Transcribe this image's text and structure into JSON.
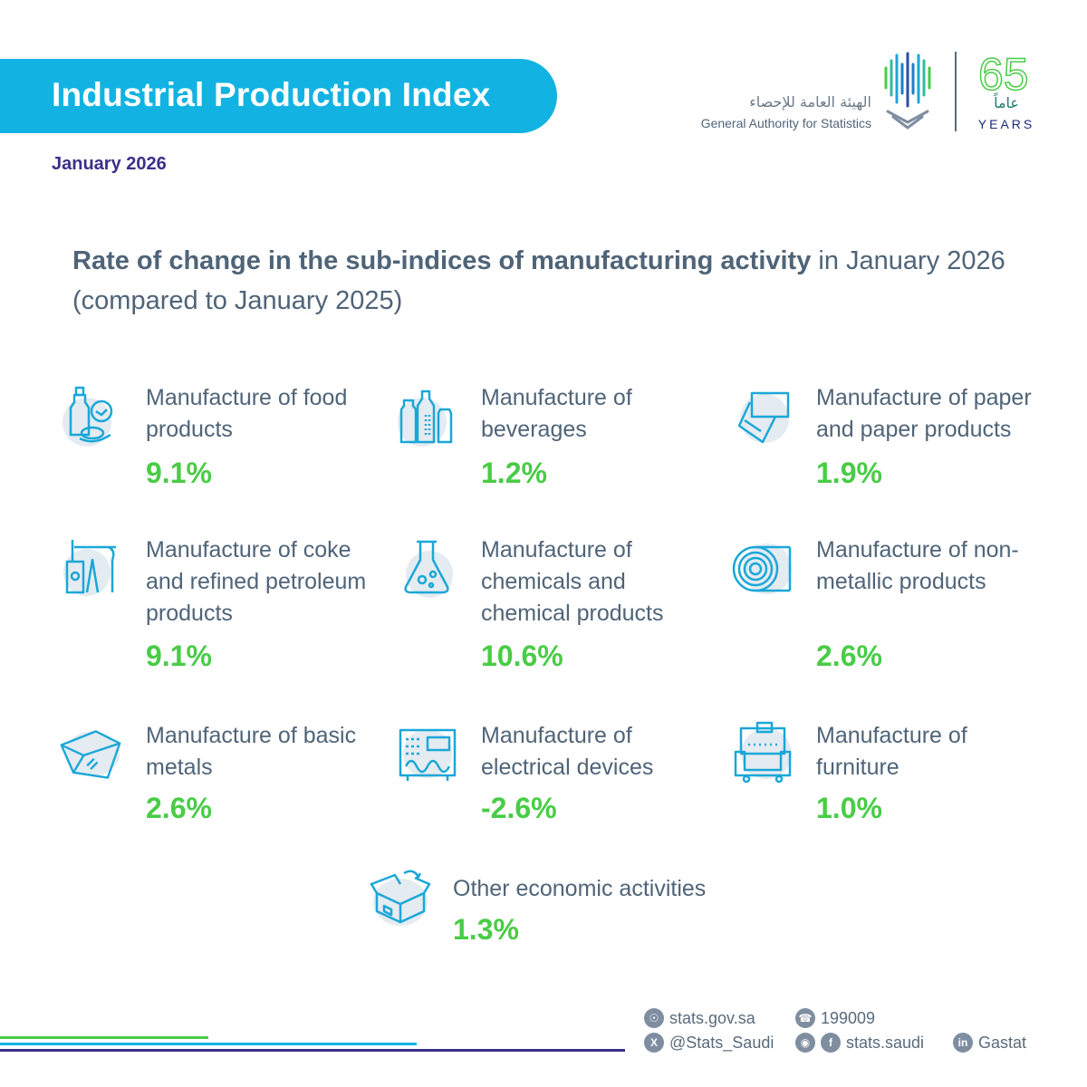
{
  "header": {
    "title": "Industrial Production Index",
    "date": "January 2026"
  },
  "logo": {
    "arabic_name": "الهيئة العامة للإحصاء",
    "english_name": "General Authority for Statistics",
    "years_number": "65",
    "years_arabic": "عاماً",
    "years_english": "YEARS"
  },
  "subtitle": {
    "bold": "Rate of change in the sub-indices of manufacturing activity",
    "rest_line1": " in January 2026",
    "line2": "(compared to January 2025)"
  },
  "items": [
    {
      "icon": "food-products-icon",
      "label": "Manufacture of food products",
      "value": "9.1%"
    },
    {
      "icon": "beverages-icon",
      "label": "Manufacture of beverages",
      "value": "1.2%"
    },
    {
      "icon": "paper-products-icon",
      "label": "Manufacture of paper and paper products",
      "value": "1.9%"
    },
    {
      "icon": "petroleum-icon",
      "label": "Manufacture of coke and refined petroleum products",
      "value": "9.1%"
    },
    {
      "icon": "chemicals-flask-icon",
      "label": "Manufacture of chemicals and chemical products",
      "value": "10.6%"
    },
    {
      "icon": "non-metallic-roll-icon",
      "label": "Manufacture of non-metallic products",
      "value": "2.6%"
    },
    {
      "icon": "basic-metals-icon",
      "label": "Manufacture of basic metals",
      "value": "2.6%"
    },
    {
      "icon": "electrical-devices-icon",
      "label": "Manufacture of electrical devices",
      "value": "-2.6%"
    },
    {
      "icon": "furniture-icon",
      "label": "Manufacture of furniture",
      "value": "1.0%"
    },
    {
      "icon": "open-box-icon",
      "label": "Other economic activities",
      "value": "1.3%"
    }
  ],
  "footer": {
    "website": "stats.gov.sa",
    "phone": "199009",
    "twitter": "@Stats_Saudi",
    "instagram_facebook": "stats.saudi",
    "linkedin": "Gastat"
  },
  "colors": {
    "banner": "#12b3e2",
    "value_green": "#49cc46",
    "text": "#4f6478",
    "icon_blue": "#1aa7d8",
    "date_purple": "#3b2f8a"
  }
}
